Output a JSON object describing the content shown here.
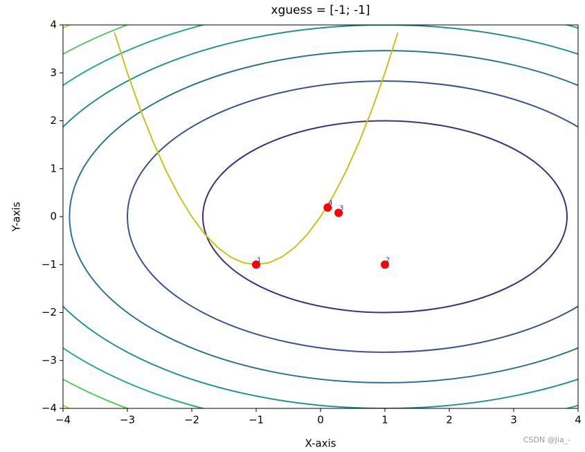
{
  "chart_data": {
    "type": "contour",
    "title": "xguess = [-1; -1]",
    "x_label": "X-axis",
    "y_label": "Y-axis",
    "xlim": [
      -4,
      4
    ],
    "ylim": [
      -4,
      4
    ],
    "xticks": [
      {
        "value": -4,
        "label": "−4"
      },
      {
        "value": -3,
        "label": "−3"
      },
      {
        "value": -2,
        "label": "−2"
      },
      {
        "value": -1,
        "label": "−1"
      },
      0,
      1,
      2,
      3,
      4
    ],
    "yticks": [
      {
        "value": -4,
        "label": "−4"
      },
      {
        "value": -3,
        "label": "−3"
      },
      {
        "value": -2,
        "label": "−2"
      },
      {
        "value": -1,
        "label": "−1"
      },
      0,
      1,
      2,
      3,
      4
    ],
    "contour": {
      "center": [
        1,
        0
      ],
      "x_weight": 1,
      "y_weight": 2,
      "levels": [
        8,
        16,
        24,
        32,
        40,
        48,
        56
      ],
      "colors": [
        "#472c7a",
        "#3b528b",
        "#2c728e",
        "#21918c",
        "#27ad81",
        "#5cc863",
        "#aadc32"
      ]
    },
    "curve": {
      "color": "#c8c21a",
      "x": [
        -3.2,
        -3.0,
        -2.8,
        -2.6,
        -2.4,
        -2.2,
        -2.0,
        -1.8,
        -1.6,
        -1.4,
        -1.2,
        -1.0,
        -0.8,
        -0.6,
        -0.4,
        -0.2,
        0,
        0.2,
        0.4,
        0.6,
        0.8,
        1.0,
        1.2
      ],
      "y": [
        3.84,
        3,
        2.24,
        1.56,
        0.96,
        0.44,
        0,
        -0.36,
        -0.64,
        -0.84,
        -0.96,
        -1,
        -0.96,
        -0.84,
        -0.64,
        -0.36,
        0,
        0.44,
        0.96,
        1.56,
        2.24,
        3,
        3.84
      ]
    },
    "points": {
      "color": "#ff0000",
      "x": [
        -1,
        1,
        0.28,
        0.11
      ],
      "y": [
        -1,
        -1,
        0.08,
        0.19
      ],
      "labels": [
        "1",
        "2",
        "3",
        "4"
      ]
    },
    "watermark": "CSDN @Jia_-"
  }
}
